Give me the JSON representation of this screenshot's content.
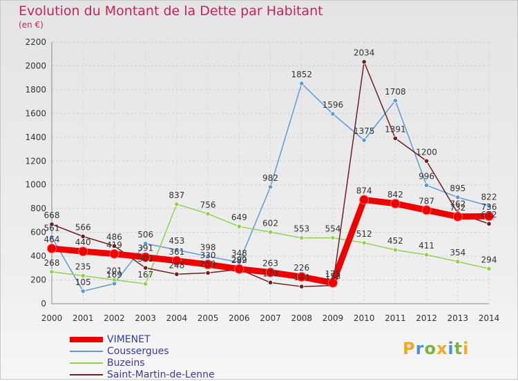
{
  "chart_data": {
    "type": "line",
    "title": "Evolution du Montant de la Dette par Habitant",
    "subtitle": "(en €)",
    "xlabel": "",
    "ylabel": "",
    "x": [
      "2000",
      "2001",
      "2002",
      "2003",
      "2004",
      "2005",
      "2006",
      "2007",
      "2008",
      "2009",
      "2010",
      "2011",
      "2012",
      "2013",
      "2014"
    ],
    "ylim": [
      0,
      2200
    ],
    "yticks": [
      0,
      200,
      400,
      600,
      800,
      1000,
      1200,
      1400,
      1600,
      1800,
      2000,
      2200
    ],
    "grid": true,
    "legend_position": "bottom-left",
    "series": [
      {
        "name": "VIMENET",
        "color": "#ee0000",
        "width": "thick",
        "values": [
          464,
          440,
          419,
          391,
          361,
          330,
          292,
          263,
          226,
          175,
          874,
          842,
          787,
          732,
          736
        ]
      },
      {
        "name": "Coussergues",
        "color": "#5b9bd5",
        "width": "thin",
        "values": [
          561,
          105,
          169,
          506,
          453,
          398,
          348,
          982,
          1852,
          1596,
          1375,
          1708,
          996,
          895,
          822
        ]
      },
      {
        "name": "Buzeins",
        "color": "#92d050",
        "width": "thin",
        "values": [
          268,
          235,
          201,
          167,
          837,
          756,
          649,
          602,
          553,
          554,
          512,
          452,
          411,
          354,
          294
        ]
      },
      {
        "name": "Saint-Martin-de-Lenne",
        "color": "#6b1f1f",
        "width": "thin",
        "values": [
          668,
          566,
          486,
          301,
          248,
          259,
          289,
          178,
          144,
          153,
          2034,
          1391,
          1200,
          762,
          672
        ]
      }
    ]
  },
  "brand": {
    "letters": [
      "P",
      "r",
      "o",
      "x",
      "i",
      "t",
      "i"
    ],
    "colors": [
      "#f5a623",
      "#4a90d9",
      "#7cb342",
      "#f5a623",
      "#4a90d9",
      "#7cb342",
      "#f5a623"
    ]
  }
}
